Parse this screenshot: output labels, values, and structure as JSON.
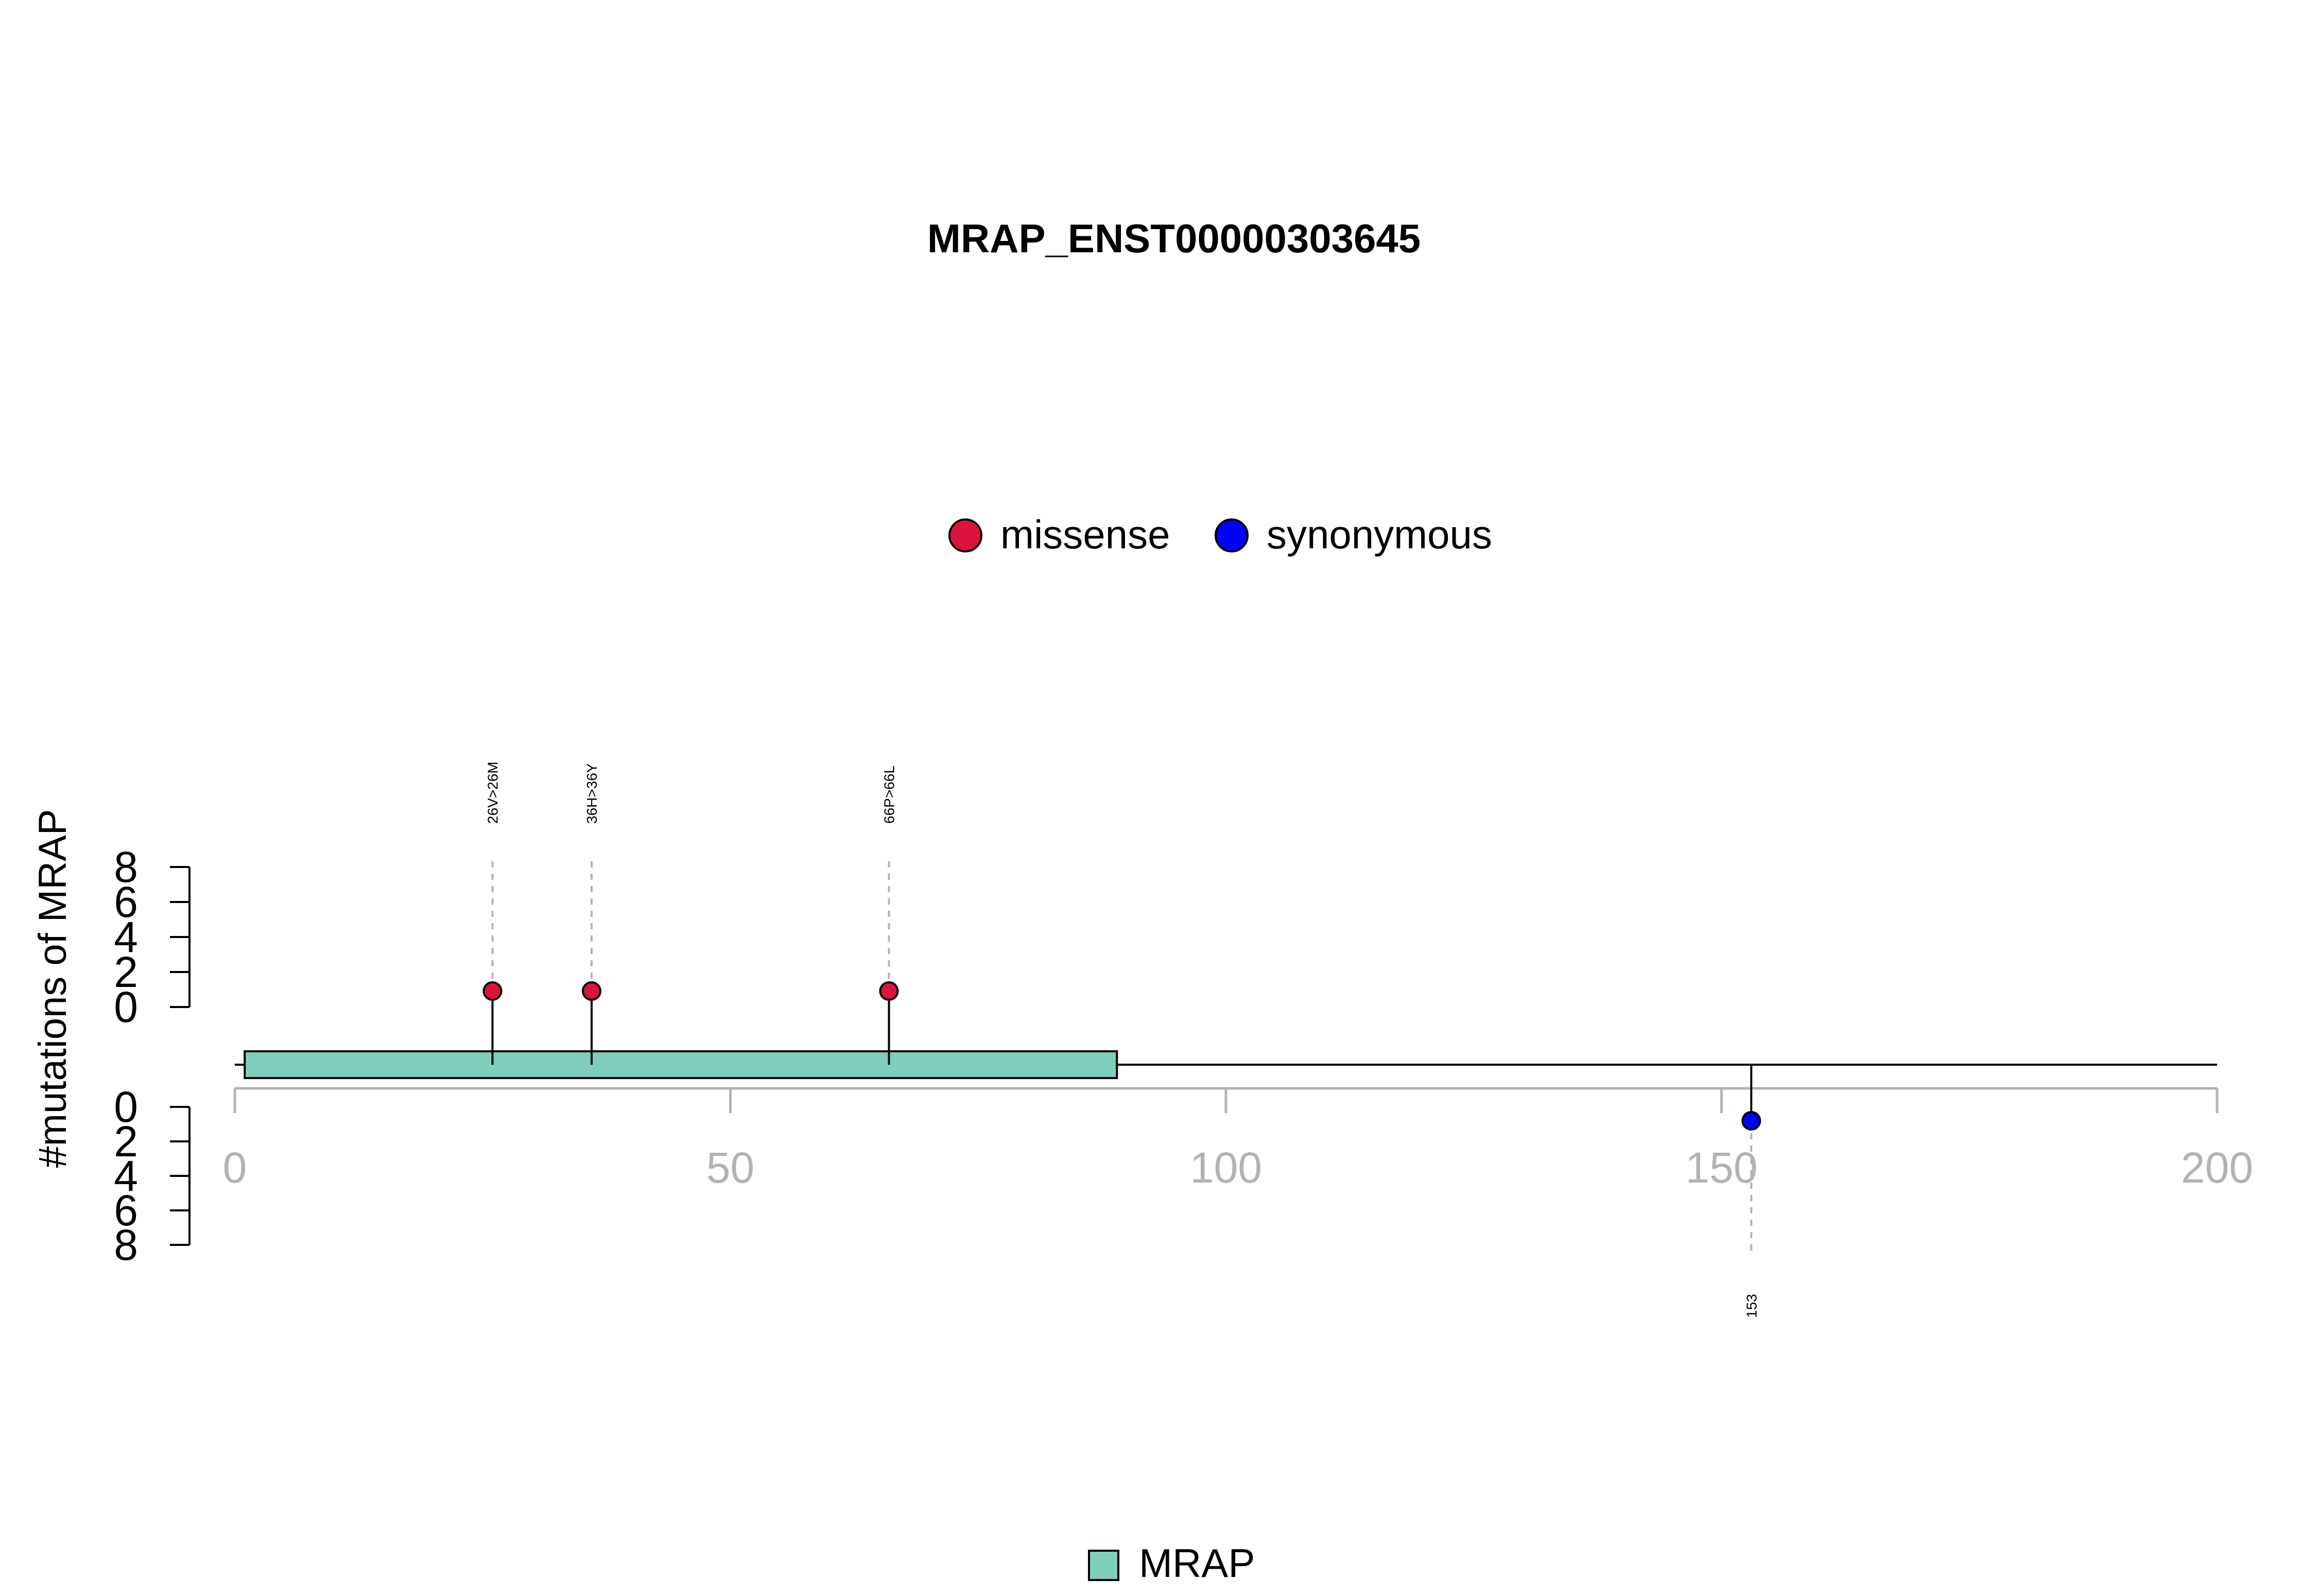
{
  "chart_data": {
    "type": "lollipop",
    "title": "MRAP_ENST00000303645",
    "ylabel": "#mutations of MRAP",
    "xlim": [
      0,
      200
    ],
    "x_ticks": [
      "0",
      "50",
      "100",
      "150",
      "200"
    ],
    "y_top_ticks": [
      "0",
      "2",
      "4",
      "6",
      "8"
    ],
    "y_bottom_ticks": [
      "0",
      "2",
      "4",
      "6",
      "8"
    ],
    "ylim": [
      0,
      8
    ],
    "legend": [
      {
        "label": "missense",
        "color": "#DC143C"
      },
      {
        "label": "synonymous",
        "color": "#0000FF"
      }
    ],
    "domain_legend": {
      "label": "MRAP",
      "color": "#7FCDBB"
    },
    "protein_length": 200,
    "domains": [
      {
        "name": "MRAP",
        "start": 1,
        "end": 89,
        "color": "#7FCDBB"
      }
    ],
    "mutations": [
      {
        "label": "26V>26M",
        "position": 26,
        "count": 1,
        "type": "missense",
        "side": "top",
        "color": "#DC143C"
      },
      {
        "label": "36H>36Y",
        "position": 36,
        "count": 1,
        "type": "missense",
        "side": "top",
        "color": "#DC143C"
      },
      {
        "label": "66P>66L",
        "position": 66,
        "count": 1,
        "type": "missense",
        "side": "top",
        "color": "#DC143C"
      },
      {
        "label": "153",
        "position": 153,
        "count": 1,
        "type": "synonymous",
        "side": "bottom",
        "color": "#0000FF"
      }
    ]
  }
}
